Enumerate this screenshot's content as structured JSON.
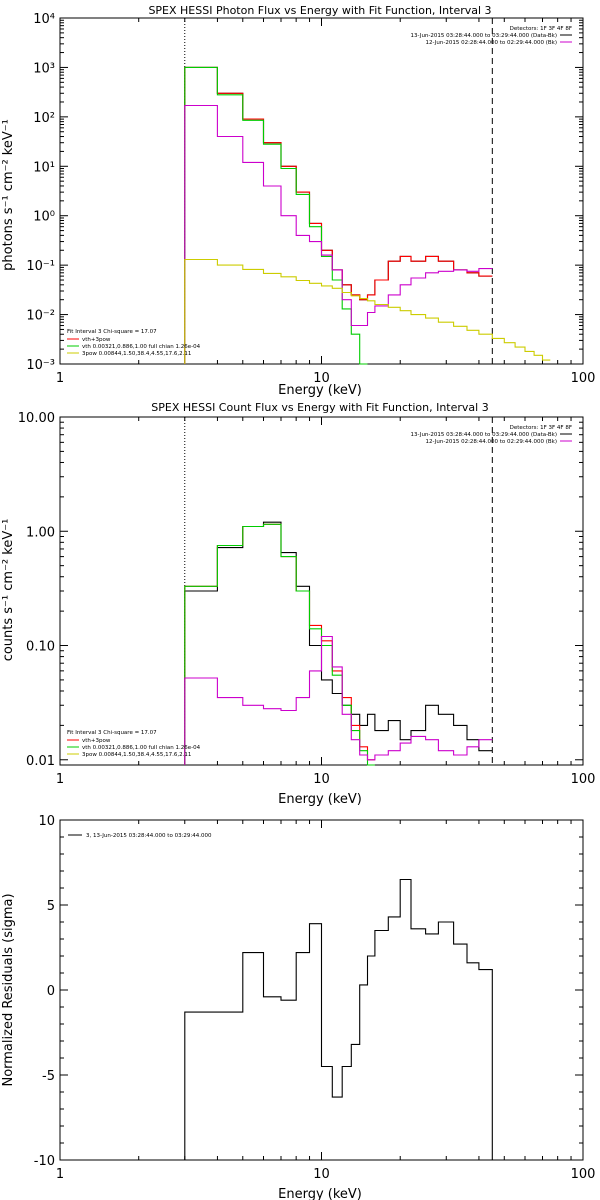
{
  "chart_data": [
    {
      "type": "line",
      "title": "SPEX HESSI Photon Flux vs Energy with Fit Function, Interval 3",
      "xlabel": "Energy (keV)",
      "ylabel": "photons s⁻¹ cm⁻² keV⁻¹",
      "xscale": "log",
      "yscale": "log",
      "xlim": [
        1,
        100
      ],
      "ylim": [
        0.001,
        10000
      ],
      "x_ticks": [
        "1",
        "10",
        "100"
      ],
      "y_ticks": [
        "10⁻³",
        "10⁻²",
        "10⁻¹",
        "10⁰",
        "10¹",
        "10²",
        "10³",
        "10⁴"
      ],
      "vlines": [
        {
          "x": 3.0,
          "style": "dotted"
        },
        {
          "x": 45.0,
          "style": "dashed"
        }
      ],
      "legend_top": [
        "Detectors: 1F 3F 4F 8F",
        "13-Jun-2015 03:28:44.000 to 03:29:44.000 (Data-Bk)",
        "12-Jun-2015 02:28:44.000 to 02:29:44.000 (Bk)"
      ],
      "legend_bottom": [
        "Fit Interval 3   Chi-square = 17.07",
        "vth+3pow",
        "vth 0.00321,0.886,1.00  full chian 1.26e-04",
        "3pow 0.00844,1.50,38.4,4.55,17.6,2.11"
      ],
      "series": [
        {
          "color": "#000000",
          "edges": [
            3.0,
            4.0,
            5.0,
            6.0,
            7.0,
            8.0,
            9.0,
            10.0,
            11.0,
            12.0,
            13.0,
            14.0,
            15.0,
            16.0,
            18.0,
            20.0,
            22.0,
            25.0,
            28.0,
            32.0,
            36.0,
            40.0,
            45.0
          ],
          "values": [
            1000,
            300,
            90,
            30,
            10,
            3,
            0.7,
            0.2,
            0.08,
            0.04,
            0.025,
            0.02,
            0.025,
            0.05,
            0.12,
            0.15,
            0.12,
            0.15,
            0.12,
            0.08,
            0.07,
            0.06
          ]
        },
        {
          "color": "#ff0000",
          "edges": [
            3.0,
            4.0,
            5.0,
            6.0,
            7.0,
            8.0,
            9.0,
            10.0,
            11.0,
            12.0,
            13.0,
            14.0,
            15.0,
            16.0,
            18.0,
            20.0,
            22.0,
            25.0,
            28.0,
            32.0,
            36.0,
            40.0,
            45.0
          ],
          "values": [
            1000,
            300,
            90,
            30,
            10,
            3,
            0.7,
            0.2,
            0.08,
            0.04,
            0.025,
            0.02,
            0.025,
            0.05,
            0.12,
            0.15,
            0.12,
            0.15,
            0.12,
            0.08,
            0.07,
            0.06
          ]
        },
        {
          "color": "#00cc00",
          "edges": [
            3.0,
            4.0,
            5.0,
            6.0,
            7.0,
            8.0,
            9.0,
            10.0,
            11.0,
            12.0,
            13.0,
            14.0,
            15.0
          ],
          "values": [
            1000,
            280,
            85,
            28,
            9,
            2.7,
            0.6,
            0.15,
            0.05,
            0.013,
            0.004,
            0.001
          ]
        },
        {
          "color": "#cc00cc",
          "edges": [
            3.0,
            4.0,
            5.0,
            6.0,
            7.0,
            8.0,
            9.0,
            10.0,
            11.0,
            12.0,
            13.0,
            14.0,
            15.0,
            16.0,
            18.0,
            20.0,
            22.0,
            25.0,
            28.0,
            32.0,
            36.0,
            40.0,
            45.0
          ],
          "values": [
            170,
            40,
            12,
            4,
            1,
            0.4,
            0.3,
            0.16,
            0.08,
            0.02,
            0.006,
            0.006,
            0.011,
            0.015,
            0.025,
            0.04,
            0.055,
            0.07,
            0.075,
            0.08,
            0.075,
            0.085
          ]
        },
        {
          "color": "#cccc00",
          "edges": [
            3.0,
            4.0,
            5.0,
            6.0,
            7.0,
            8.0,
            9.0,
            10.0,
            11.0,
            12.0,
            13.0,
            14.0,
            15.0,
            16.0,
            18.0,
            20.0,
            22.0,
            25.0,
            28.0,
            32.0,
            36.0,
            40.0,
            45.0,
            50.0,
            55.0,
            60.0,
            65.0,
            70.0,
            75.0
          ],
          "values": [
            0.13,
            0.1,
            0.082,
            0.068,
            0.058,
            0.049,
            0.043,
            0.038,
            0.034,
            0.028,
            0.024,
            0.021,
            0.019,
            0.016,
            0.014,
            0.012,
            0.01,
            0.0085,
            0.007,
            0.0058,
            0.0048,
            0.004,
            0.0033,
            0.0027,
            0.0022,
            0.0018,
            0.0015,
            0.0012
          ]
        }
      ]
    },
    {
      "type": "line",
      "title": "SPEX HESSI Count Flux vs Energy with Fit Function, Interval 3",
      "xlabel": "Energy (keV)",
      "ylabel": "counts s⁻¹ cm⁻² keV⁻¹",
      "xscale": "log",
      "yscale": "log",
      "xlim": [
        1,
        100
      ],
      "ylim": [
        0.009,
        10
      ],
      "x_ticks": [
        "1",
        "10",
        "100"
      ],
      "y_ticks": [
        "0.01",
        "0.10",
        "1.00",
        "10.00"
      ],
      "vlines": [
        {
          "x": 3.0,
          "style": "dotted"
        },
        {
          "x": 45.0,
          "style": "dashed"
        }
      ],
      "legend_top": [
        "Detectors: 1F 3F 4F 8F",
        "13-Jun-2015 03:28:44.000 to 03:29:44.000 (Data-Bk)",
        "12-Jun-2015 02:28:44.000 to 02:29:44.000 (Bk)"
      ],
      "legend_bottom": [
        "Fit Interval 3   Chi-square = 17.07",
        "vth+3pow",
        "vth 0.00321,0.886,1.00  full chian 1.26e-04",
        "3pow 0.00844,1.50,38.4,4.55,17.6,2.11"
      ],
      "series": [
        {
          "color": "#000000",
          "edges": [
            3.0,
            4.0,
            5.0,
            6.0,
            7.0,
            8.0,
            9.0,
            10.0,
            11.0,
            12.0,
            13.0,
            14.0,
            15.0,
            16.0,
            18.0,
            20.0,
            22.0,
            25.0,
            28.0,
            32.0,
            36.0,
            40.0,
            45.0
          ],
          "values": [
            0.3,
            0.72,
            1.1,
            1.2,
            0.65,
            0.33,
            0.1,
            0.05,
            0.038,
            0.03,
            0.025,
            0.02,
            0.025,
            0.018,
            0.022,
            0.015,
            0.018,
            0.03,
            0.025,
            0.02,
            0.015,
            0.012
          ]
        },
        {
          "color": "#ff0000",
          "edges": [
            3.0,
            4.0,
            5.0,
            6.0,
            7.0,
            8.0,
            9.0,
            10.0,
            11.0,
            12.0,
            13.0,
            14.0,
            15.0,
            16.0
          ],
          "values": [
            0.33,
            0.75,
            1.1,
            1.15,
            0.6,
            0.3,
            0.15,
            0.11,
            0.06,
            0.035,
            0.02,
            0.013,
            0.01
          ]
        },
        {
          "color": "#00cc00",
          "edges": [
            3.0,
            4.0,
            5.0,
            6.0,
            7.0,
            8.0,
            9.0,
            10.0,
            11.0,
            12.0,
            13.0,
            14.0,
            15.0,
            16.0
          ],
          "values": [
            0.33,
            0.75,
            1.1,
            1.15,
            0.6,
            0.3,
            0.14,
            0.1,
            0.055,
            0.03,
            0.018,
            0.012,
            0.009
          ]
        },
        {
          "color": "#cc00cc",
          "edges": [
            3.0,
            4.0,
            5.0,
            6.0,
            7.0,
            8.0,
            9.0,
            10.0,
            11.0,
            12.0,
            13.0,
            14.0,
            15.0,
            16.0,
            18.0,
            20.0,
            22.0,
            25.0,
            28.0,
            32.0,
            36.0,
            40.0,
            45.0
          ],
          "values": [
            0.052,
            0.035,
            0.03,
            0.028,
            0.027,
            0.035,
            0.06,
            0.12,
            0.065,
            0.025,
            0.015,
            0.011,
            0.01,
            0.011,
            0.012,
            0.014,
            0.016,
            0.015,
            0.012,
            0.011,
            0.013,
            0.015
          ]
        }
      ]
    },
    {
      "type": "line",
      "title": "",
      "xlabel": "Energy (keV)",
      "ylabel": "Normalized Residuals (sigma)",
      "xscale": "log",
      "yscale": "linear",
      "xlim": [
        1,
        100
      ],
      "ylim": [
        -10,
        10
      ],
      "x_ticks": [
        "1",
        "10",
        "100"
      ],
      "y_ticks": [
        "-10",
        "-5",
        "0",
        "5",
        "10"
      ],
      "legend": [
        "3, 13-Jun-2015 03:28:44.000 to 03:29:44.000"
      ],
      "series": [
        {
          "color": "#000000",
          "edges": [
            3.0,
            4.0,
            5.0,
            6.0,
            7.0,
            8.0,
            9.0,
            10.0,
            11.0,
            12.0,
            13.0,
            14.0,
            15.0,
            16.0,
            18.0,
            20.0,
            22.0,
            25.0,
            28.0,
            32.0,
            36.0,
            40.0,
            45.0
          ],
          "values": [
            -1.3,
            -1.3,
            2.2,
            -0.4,
            -0.6,
            2.2,
            3.9,
            -4.5,
            -6.3,
            -4.5,
            -3.2,
            0.3,
            2.0,
            3.5,
            4.3,
            6.5,
            3.6,
            3.3,
            4.0,
            2.7,
            1.6,
            1.2
          ]
        }
      ]
    }
  ]
}
